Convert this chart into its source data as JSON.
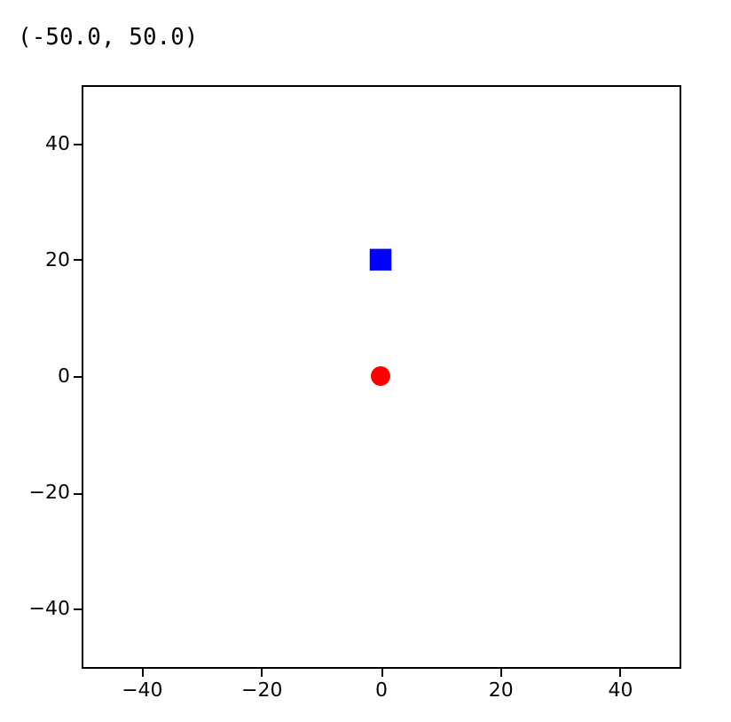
{
  "chart_data": {
    "type": "scatter",
    "title": "(-50.0, 50.0)",
    "xlim": [
      -50,
      50
    ],
    "ylim": [
      -50,
      50
    ],
    "xticks": [
      -40,
      -20,
      0,
      20,
      40
    ],
    "yticks": [
      -40,
      -20,
      0,
      20,
      40
    ],
    "grid": false,
    "series": [
      {
        "color": "#ff0000",
        "x": [
          0
        ],
        "values": [
          0
        ],
        "marker": "circle"
      },
      {
        "color": "#0000ff",
        "x": [
          0
        ],
        "values": [
          20
        ],
        "marker": "square"
      }
    ]
  }
}
